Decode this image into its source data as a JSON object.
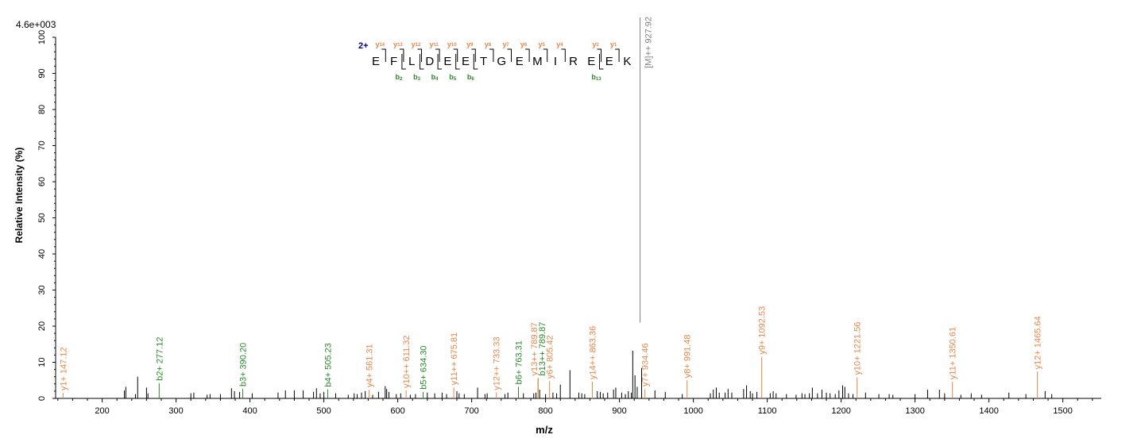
{
  "chart_data": {
    "type": "spectrum",
    "max_intensity_label": "4.6e+003",
    "xlabel": "m/z",
    "ylabel": "Relative   Intensity (%)",
    "xlim": [
      137,
      1552
    ],
    "ylim": [
      0,
      100
    ],
    "x_ticks": [
      200,
      300,
      400,
      500,
      600,
      700,
      800,
      900,
      1000,
      1100,
      1200,
      1300,
      1400,
      1500
    ],
    "y_ticks": [
      0,
      10,
      20,
      30,
      40,
      50,
      60,
      70,
      80,
      90,
      100
    ],
    "colors": {
      "y_ion": "#e8864a",
      "b_ion": "#2a8a2a",
      "precursor": "#808080",
      "noise": "#000000",
      "charge": "#000080"
    },
    "precursor": {
      "mz": 927.92,
      "intensity": 100,
      "label": "[M]++ 927.92"
    },
    "annotated_peaks": [
      {
        "mz": 147.12,
        "intensity": 1.5,
        "label": "y1+ 147.12",
        "ion": "y"
      },
      {
        "mz": 277.12,
        "intensity": 4.2,
        "label": "b2+ 277.12",
        "ion": "b"
      },
      {
        "mz": 390.2,
        "intensity": 2.6,
        "label": "b3+ 390.20",
        "ion": "b"
      },
      {
        "mz": 505.23,
        "intensity": 2.5,
        "label": "b4+ 505.23",
        "ion": "b"
      },
      {
        "mz": 561.31,
        "intensity": 2.4,
        "label": "y4+ 561.31",
        "ion": "y"
      },
      {
        "mz": 611.32,
        "intensity": 2.2,
        "label": "y10++ 611.32",
        "ion": "y"
      },
      {
        "mz": 634.3,
        "intensity": 1.8,
        "label": "b5+ 634.30",
        "ion": "b"
      },
      {
        "mz": 675.81,
        "intensity": 3.0,
        "label": "y11++ 675.81",
        "ion": "y"
      },
      {
        "mz": 733.33,
        "intensity": 1.6,
        "label": "y12++ 733.33",
        "ion": "y"
      },
      {
        "mz": 763.31,
        "intensity": 3.2,
        "label": "b6+ 763.31",
        "ion": "b"
      },
      {
        "mz": 789.87,
        "intensity": 5.6,
        "label": "b13++ 789.87",
        "ion": "b"
      },
      {
        "mz": 789.87,
        "intensity": 5.6,
        "label": "y13++ 789.87",
        "ion": "y"
      },
      {
        "mz": 805.42,
        "intensity": 4.8,
        "label": "y6+ 805.42",
        "ion": "y"
      },
      {
        "mz": 863.36,
        "intensity": 4.6,
        "label": "y14++ 863.36",
        "ion": "y"
      },
      {
        "mz": 934.46,
        "intensity": 2.6,
        "label": "y7+ 934.46",
        "ion": "y"
      },
      {
        "mz": 991.48,
        "intensity": 5.0,
        "label": "y8+ 991.48",
        "ion": "y"
      },
      {
        "mz": 1092.53,
        "intensity": 11.5,
        "label": "y9+ 1092.53",
        "ion": "y"
      },
      {
        "mz": 1221.56,
        "intensity": 5.8,
        "label": "y10+ 1221.56",
        "ion": "y"
      },
      {
        "mz": 1350.61,
        "intensity": 4.6,
        "label": "y11+ 1350.61",
        "ion": "y"
      },
      {
        "mz": 1465.64,
        "intensity": 7.4,
        "label": "y12+ 1465.64",
        "ion": "y"
      }
    ],
    "unannotated_peaks": [
      [
        230,
        2.2
      ],
      [
        232,
        3.2
      ],
      [
        245,
        1.2
      ],
      [
        248,
        6.0
      ],
      [
        260,
        3.0
      ],
      [
        262,
        1.4
      ],
      [
        320,
        1.4
      ],
      [
        324,
        1.6
      ],
      [
        342,
        1.0
      ],
      [
        346,
        1.2
      ],
      [
        360,
        1.2
      ],
      [
        375,
        2.8
      ],
      [
        379,
        2.0
      ],
      [
        386,
        1.8
      ],
      [
        403,
        1.4
      ],
      [
        438,
        1.6
      ],
      [
        448,
        2.2
      ],
      [
        460,
        2.2
      ],
      [
        472,
        2.2
      ],
      [
        486,
        1.8
      ],
      [
        490,
        2.8
      ],
      [
        495,
        1.4
      ],
      [
        500,
        1.8
      ],
      [
        516,
        1.4
      ],
      [
        533,
        1.0
      ],
      [
        541,
        1.4
      ],
      [
        545,
        1.2
      ],
      [
        551,
        1.6
      ],
      [
        556,
        2.0
      ],
      [
        566,
        1.0
      ],
      [
        574,
        1.8
      ],
      [
        583,
        3.4
      ],
      [
        585,
        2.6
      ],
      [
        588,
        1.8
      ],
      [
        598,
        1.2
      ],
      [
        604,
        1.4
      ],
      [
        617,
        1.0
      ],
      [
        624,
        1.2
      ],
      [
        640,
        1.6
      ],
      [
        650,
        1.4
      ],
      [
        660,
        1.6
      ],
      [
        666,
        1.2
      ],
      [
        680,
        2.0
      ],
      [
        683,
        1.4
      ],
      [
        690,
        1.2
      ],
      [
        708,
        3.0
      ],
      [
        718,
        1.2
      ],
      [
        721,
        1.4
      ],
      [
        745,
        1.2
      ],
      [
        749,
        1.6
      ],
      [
        770,
        1.4
      ],
      [
        784,
        1.4
      ],
      [
        787,
        1.6
      ],
      [
        792,
        2.4
      ],
      [
        800,
        1.2
      ],
      [
        810,
        1.6
      ],
      [
        815,
        1.4
      ],
      [
        820,
        3.8
      ],
      [
        833,
        7.8
      ],
      [
        845,
        1.6
      ],
      [
        849,
        1.4
      ],
      [
        853,
        1.2
      ],
      [
        870,
        2.0
      ],
      [
        874,
        1.8
      ],
      [
        878,
        1.4
      ],
      [
        884,
        1.6
      ],
      [
        892,
        2.4
      ],
      [
        895,
        3.0
      ],
      [
        903,
        1.6
      ],
      [
        908,
        1.2
      ],
      [
        912,
        2.0
      ],
      [
        916,
        1.6
      ],
      [
        918,
        13.2
      ],
      [
        921,
        6.4
      ],
      [
        924,
        3.2
      ],
      [
        930,
        8.4
      ],
      [
        948,
        2.2
      ],
      [
        962,
        1.8
      ],
      [
        985,
        1.2
      ],
      [
        1023,
        1.4
      ],
      [
        1027,
        2.4
      ],
      [
        1031,
        3.0
      ],
      [
        1035,
        1.6
      ],
      [
        1043,
        1.6
      ],
      [
        1047,
        2.6
      ],
      [
        1052,
        1.6
      ],
      [
        1068,
        2.6
      ],
      [
        1072,
        3.6
      ],
      [
        1077,
        2.0
      ],
      [
        1080,
        1.4
      ],
      [
        1086,
        1.8
      ],
      [
        1104,
        1.4
      ],
      [
        1108,
        2.0
      ],
      [
        1112,
        1.4
      ],
      [
        1126,
        1.2
      ],
      [
        1139,
        1.0
      ],
      [
        1147,
        1.4
      ],
      [
        1151,
        1.2
      ],
      [
        1157,
        1.4
      ],
      [
        1161,
        3.0
      ],
      [
        1168,
        1.4
      ],
      [
        1174,
        2.4
      ],
      [
        1180,
        1.6
      ],
      [
        1185,
        1.4
      ],
      [
        1192,
        1.2
      ],
      [
        1197,
        2.2
      ],
      [
        1202,
        3.6
      ],
      [
        1205,
        3.2
      ],
      [
        1210,
        1.4
      ],
      [
        1216,
        1.2
      ],
      [
        1233,
        1.6
      ],
      [
        1251,
        1.2
      ],
      [
        1265,
        1.2
      ],
      [
        1270,
        1.0
      ],
      [
        1300,
        1.2
      ],
      [
        1317,
        2.4
      ],
      [
        1333,
        2.4
      ],
      [
        1340,
        1.4
      ],
      [
        1362,
        1.0
      ],
      [
        1376,
        1.4
      ],
      [
        1390,
        1.0
      ],
      [
        1427,
        1.6
      ],
      [
        1450,
        1.2
      ],
      [
        1476,
        2.0
      ],
      [
        1485,
        1.2
      ]
    ],
    "sequence": {
      "charge": "2+",
      "residues": [
        "E",
        "F",
        "L",
        "D",
        "E",
        "E",
        "T",
        "G",
        "E",
        "M",
        "I",
        "R",
        "E",
        "E",
        "K"
      ],
      "y_ions": [
        {
          "gap": 1,
          "label": "y14"
        },
        {
          "gap": 2,
          "label": "y13"
        },
        {
          "gap": 3,
          "label": "y12"
        },
        {
          "gap": 4,
          "label": "y11"
        },
        {
          "gap": 5,
          "label": "y10"
        },
        {
          "gap": 6,
          "label": "y9"
        },
        {
          "gap": 7,
          "label": "y8"
        },
        {
          "gap": 8,
          "label": "y7"
        },
        {
          "gap": 9,
          "label": "y6"
        },
        {
          "gap": 10,
          "label": "y5"
        },
        {
          "gap": 11,
          "label": "y4"
        },
        {
          "gap": 13,
          "label": "y2"
        },
        {
          "gap": 14,
          "label": "y1"
        }
      ],
      "b_ions": [
        {
          "gap": 2,
          "label": "b2"
        },
        {
          "gap": 3,
          "label": "b3"
        },
        {
          "gap": 4,
          "label": "b4"
        },
        {
          "gap": 5,
          "label": "b5"
        },
        {
          "gap": 6,
          "label": "b6"
        },
        {
          "gap": 13,
          "label": "b13"
        }
      ]
    }
  }
}
